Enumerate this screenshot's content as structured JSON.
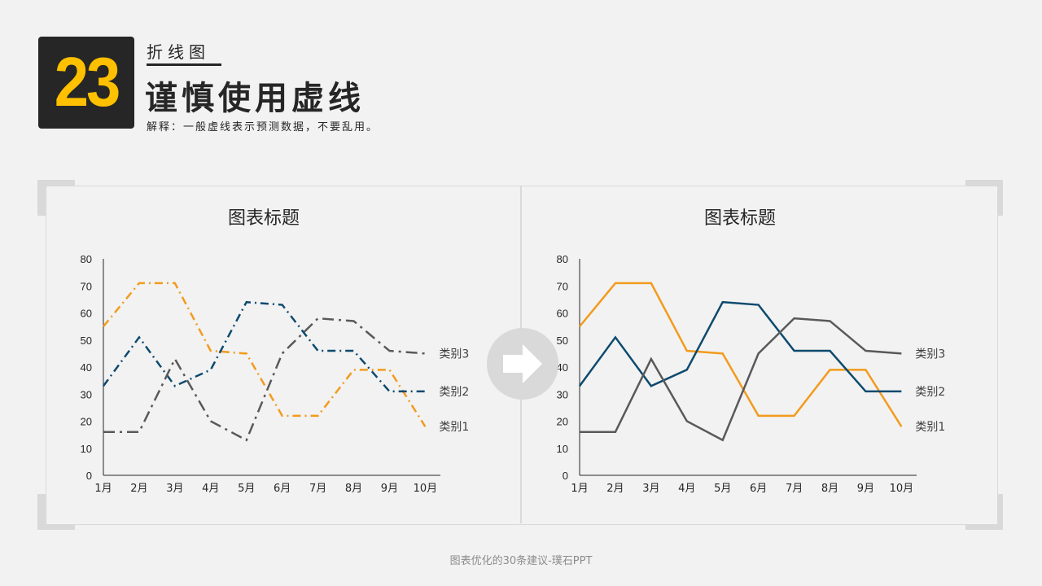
{
  "header": {
    "number": "23",
    "subtitle": "折线图",
    "title": "谨慎使用虚线",
    "explanation": "解释：一般虚线表示预测数据，不要乱用。"
  },
  "footer": "图表优化的30条建议-璞石PPT",
  "arrow_icon": "right-arrow-icon",
  "colors": {
    "series1": "#f29b1d",
    "series2": "#0d4a6e",
    "series3": "#595959",
    "badge_bg": "#262626",
    "badge_text": "#ffc000"
  },
  "chart_data": [
    {
      "type": "line",
      "title": "图表标题",
      "categories": [
        "1月",
        "2月",
        "3月",
        "4月",
        "5月",
        "6月",
        "7月",
        "8月",
        "9月",
        "10月"
      ],
      "ylim": [
        0,
        80
      ],
      "yticks": [
        0,
        10,
        20,
        30,
        40,
        50,
        60,
        70,
        80
      ],
      "grid": false,
      "legend": "inline-right",
      "line_style": "dashed",
      "series": [
        {
          "name": "类别1",
          "values": [
            55,
            71,
            71,
            46,
            45,
            22,
            22,
            39,
            39,
            18
          ]
        },
        {
          "name": "类别2",
          "values": [
            33,
            51,
            33,
            39,
            64,
            63,
            46,
            46,
            31,
            31
          ]
        },
        {
          "name": "类别3",
          "values": [
            16,
            16,
            43,
            20,
            13,
            45,
            58,
            57,
            46,
            45
          ]
        }
      ]
    },
    {
      "type": "line",
      "title": "图表标题",
      "categories": [
        "1月",
        "2月",
        "3月",
        "4月",
        "5月",
        "6月",
        "7月",
        "8月",
        "9月",
        "10月"
      ],
      "ylim": [
        0,
        80
      ],
      "yticks": [
        0,
        10,
        20,
        30,
        40,
        50,
        60,
        70,
        80
      ],
      "grid": false,
      "legend": "inline-right",
      "line_style": "solid",
      "series": [
        {
          "name": "类别1",
          "values": [
            55,
            71,
            71,
            46,
            45,
            22,
            22,
            39,
            39,
            18
          ]
        },
        {
          "name": "类别2",
          "values": [
            33,
            51,
            33,
            39,
            64,
            63,
            46,
            46,
            31,
            31
          ]
        },
        {
          "name": "类别3",
          "values": [
            16,
            16,
            43,
            20,
            13,
            45,
            58,
            57,
            46,
            45
          ]
        }
      ]
    }
  ]
}
